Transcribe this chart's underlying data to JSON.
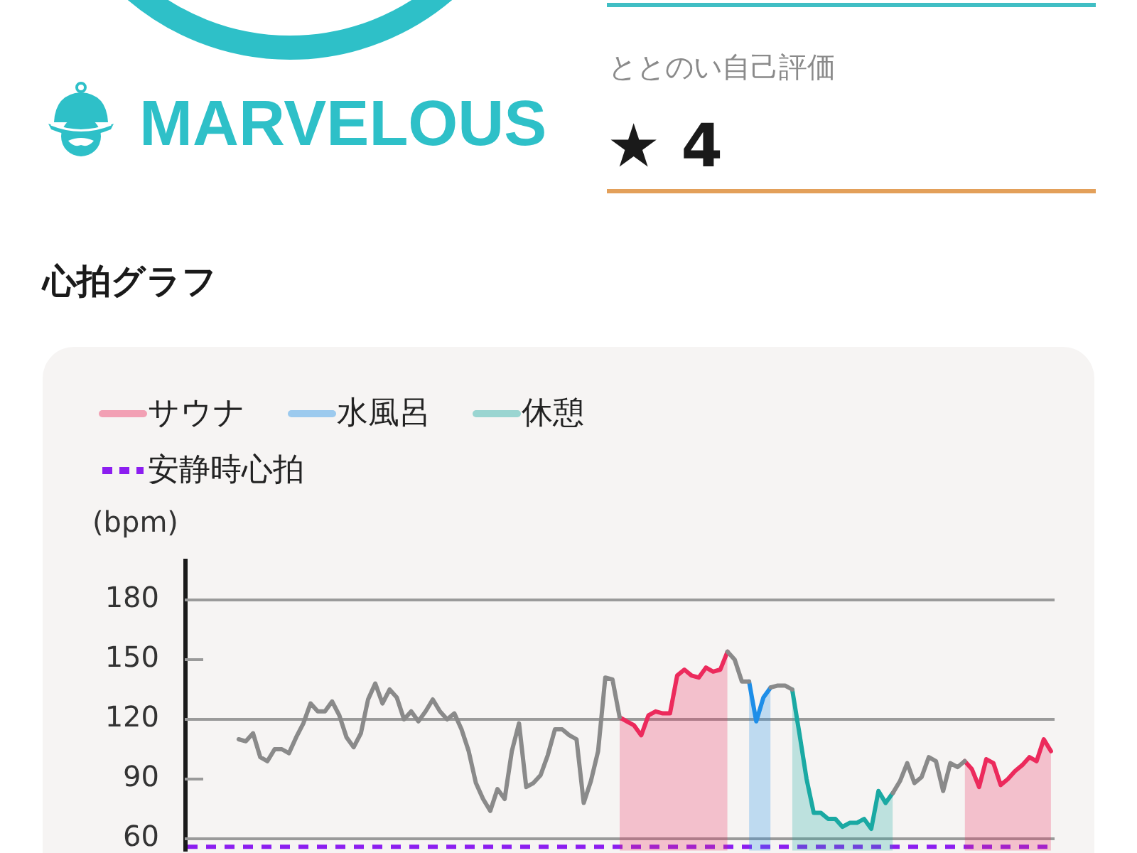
{
  "chart_data": {
    "type": "line",
    "title": "心拍グラフ",
    "ylabel": "(bpm)",
    "annotations": [
      "MARVELOUS",
      "ととのい自己評価",
      "★ 4"
    ],
    "categories": [
      null,
      null,
      null,
      null,
      null,
      null,
      null,
      null,
      null,
      null,
      null,
      null,
      null,
      null,
      null,
      null,
      null,
      null,
      null,
      null,
      null,
      null,
      null,
      null,
      null,
      null,
      null,
      null,
      null,
      null,
      null,
      null,
      null,
      null,
      null,
      null,
      null,
      null,
      null,
      null,
      null,
      null,
      null,
      null,
      null,
      null,
      null,
      null,
      null,
      null,
      null,
      null,
      null,
      null,
      null,
      null,
      null,
      null,
      null,
      null,
      null,
      null,
      null,
      null,
      null,
      null,
      null,
      null,
      null,
      null,
      null,
      null,
      null,
      null,
      null,
      null,
      null,
      null,
      null,
      null,
      null,
      null,
      null,
      null,
      null,
      null,
      null,
      null,
      null,
      null,
      null,
      null,
      null,
      null,
      null,
      null,
      null,
      null,
      null,
      null,
      null,
      null,
      null,
      null,
      null,
      null,
      null,
      null,
      null,
      null,
      null,
      null,
      null,
      null,
      null,
      null,
      null,
      null,
      null,
      null,
      null
    ],
    "series": [
      {
        "color": "#8a8a8a",
        "values": [
          null,
          null,
          null,
          null,
          null,
          null,
          null,
          110,
          109,
          113,
          101,
          99,
          105,
          105,
          103,
          111,
          118,
          128,
          124,
          124,
          129,
          122,
          111,
          106,
          113,
          130,
          138,
          128,
          135,
          131,
          120,
          124,
          119,
          124,
          130,
          124,
          120,
          123,
          115,
          104,
          88,
          80,
          74,
          85,
          80,
          104,
          118,
          86,
          88,
          92,
          102,
          115,
          115,
          112,
          110,
          78,
          89,
          104,
          141,
          140,
          121,
          null,
          null,
          null,
          null,
          null,
          null,
          null,
          null,
          null,
          null,
          null,
          null,
          null,
          null,
          154,
          150,
          139,
          139,
          null,
          null,
          136,
          137,
          137,
          135,
          null,
          null,
          null,
          null,
          null,
          null,
          null,
          null,
          null,
          null,
          null,
          null,
          null,
          83,
          89,
          98,
          88,
          91,
          101,
          99,
          84,
          98,
          96,
          99,
          null,
          null,
          null,
          null,
          null,
          null,
          null,
          null,
          null,
          null,
          null,
          null
        ]
      },
      {
        "name": "サウナ",
        "type": "area",
        "color": "#ec2a5c",
        "values": [
          null,
          null,
          null,
          null,
          null,
          null,
          null,
          null,
          null,
          null,
          null,
          null,
          null,
          null,
          null,
          null,
          null,
          null,
          null,
          null,
          null,
          null,
          null,
          null,
          null,
          null,
          null,
          null,
          null,
          null,
          null,
          null,
          null,
          null,
          null,
          null,
          null,
          null,
          null,
          null,
          null,
          null,
          null,
          null,
          null,
          null,
          null,
          null,
          null,
          null,
          null,
          null,
          null,
          null,
          null,
          null,
          null,
          null,
          null,
          null,
          121,
          119,
          117,
          112,
          122,
          124,
          123,
          123,
          142,
          145,
          142,
          141,
          146,
          144,
          145,
          154,
          null,
          null,
          null,
          null,
          null,
          null,
          null,
          null,
          null,
          null,
          null,
          null,
          null,
          null,
          null,
          null,
          null,
          null,
          null,
          null,
          null,
          null,
          null,
          null,
          null,
          null,
          null,
          null,
          null,
          null,
          null,
          null,
          99,
          95,
          86,
          100,
          98,
          87,
          90,
          94,
          97,
          101,
          99,
          110,
          104
        ]
      },
      {
        "name": "水風呂",
        "type": "area",
        "color": "#1e8ee8",
        "values": [
          null,
          null,
          null,
          null,
          null,
          null,
          null,
          null,
          null,
          null,
          null,
          null,
          null,
          null,
          null,
          null,
          null,
          null,
          null,
          null,
          null,
          null,
          null,
          null,
          null,
          null,
          null,
          null,
          null,
          null,
          null,
          null,
          null,
          null,
          null,
          null,
          null,
          null,
          null,
          null,
          null,
          null,
          null,
          null,
          null,
          null,
          null,
          null,
          null,
          null,
          null,
          null,
          null,
          null,
          null,
          null,
          null,
          null,
          null,
          null,
          null,
          null,
          null,
          null,
          null,
          null,
          null,
          null,
          null,
          null,
          null,
          null,
          null,
          null,
          null,
          null,
          null,
          null,
          139,
          119,
          131,
          136,
          null,
          null,
          null,
          null,
          null,
          null,
          null,
          null,
          null,
          null,
          null,
          null,
          null,
          null,
          null,
          null,
          null,
          null,
          null,
          null,
          null,
          null,
          null,
          null,
          null,
          null,
          null,
          null,
          null,
          null,
          null,
          null,
          null,
          null,
          null,
          null,
          null,
          null,
          null
        ]
      },
      {
        "name": "休憩",
        "type": "area",
        "color": "#1aa9a3",
        "values": [
          null,
          null,
          null,
          null,
          null,
          null,
          null,
          null,
          null,
          null,
          null,
          null,
          null,
          null,
          null,
          null,
          null,
          null,
          null,
          null,
          null,
          null,
          null,
          null,
          null,
          null,
          null,
          null,
          null,
          null,
          null,
          null,
          null,
          null,
          null,
          null,
          null,
          null,
          null,
          null,
          null,
          null,
          null,
          null,
          null,
          null,
          null,
          null,
          null,
          null,
          null,
          null,
          null,
          null,
          null,
          null,
          null,
          null,
          null,
          null,
          null,
          null,
          null,
          null,
          null,
          null,
          null,
          null,
          null,
          null,
          null,
          null,
          null,
          null,
          null,
          null,
          null,
          null,
          null,
          null,
          null,
          null,
          null,
          null,
          135,
          113,
          90,
          73,
          73,
          70,
          70,
          66,
          68,
          68,
          70,
          65,
          84,
          78,
          83,
          null,
          null,
          null,
          null,
          null,
          null,
          null,
          null,
          null,
          null,
          null,
          null,
          null,
          null,
          null,
          null,
          null,
          null,
          null,
          null,
          null,
          null
        ]
      }
    ],
    "ylim": [
      54,
      200
    ],
    "yticks": [
      60,
      90,
      120,
      150,
      180
    ],
    "grid": "y",
    "legend": "top left",
    "ref_lines": [
      {
        "axis": "y",
        "value": 56,
        "label": "安静時心拍",
        "color": "#8c1ef0",
        "line_style": "dashed"
      }
    ]
  }
}
